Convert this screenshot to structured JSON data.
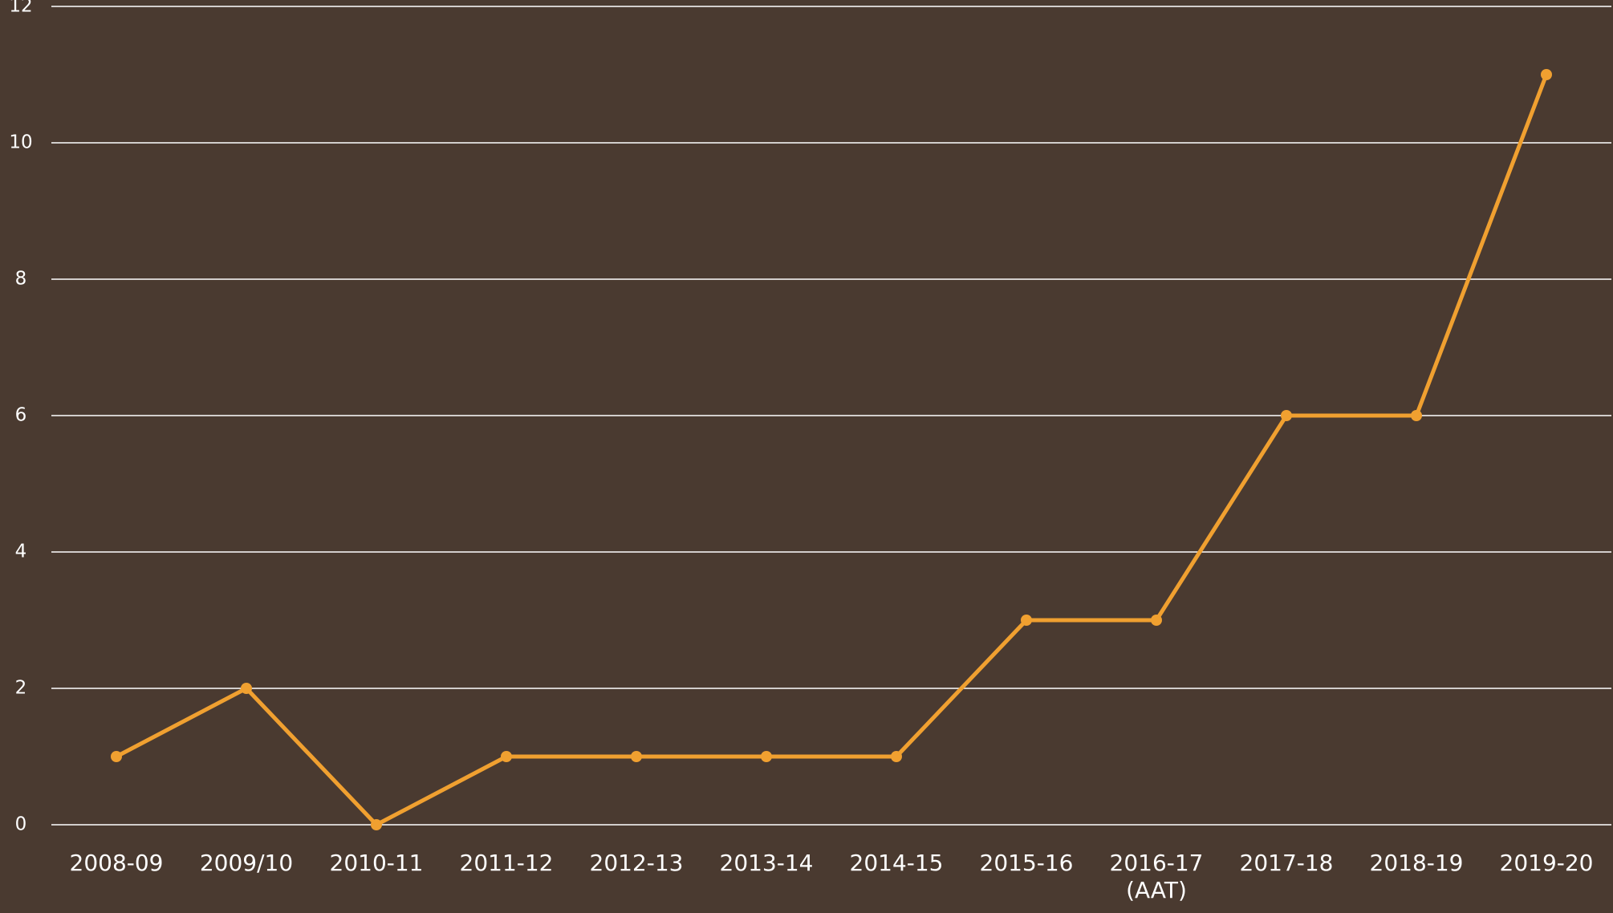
{
  "chart_data": {
    "type": "line",
    "categories": [
      "2008-09",
      "2009/10",
      "2010-11",
      "2011-12",
      "2012-13",
      "2013-14",
      "2014-15",
      "2015-16",
      "2016-17\n(AAT)",
      "2017-18",
      "2018-19",
      "2019-20"
    ],
    "series": [
      {
        "color": "#f0a030",
        "values": [
          1,
          2,
          0,
          1,
          1,
          1,
          1,
          3,
          3,
          6,
          6,
          11
        ]
      }
    ],
    "ylim": [
      0,
      12
    ],
    "yticks": [
      0,
      2,
      4,
      6,
      8,
      10,
      12
    ],
    "grid": true
  }
}
